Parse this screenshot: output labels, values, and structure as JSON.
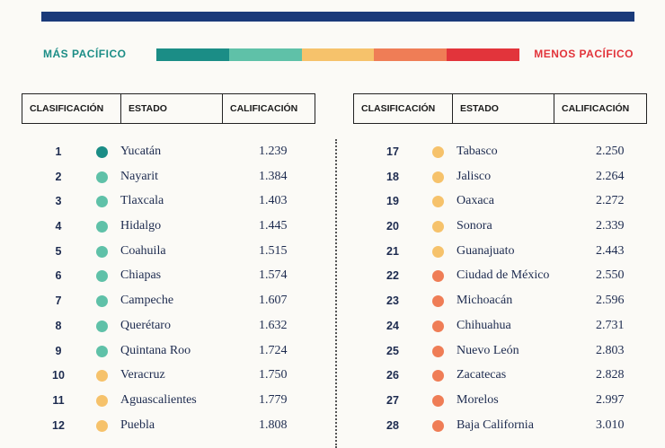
{
  "legend": {
    "left": "MÁS PACÍFICO",
    "right": "MENOS PACÍFICO",
    "scale_colors": [
      "#1b8d86",
      "#5fc1a8",
      "#f6c26b",
      "#ef7d56",
      "#e2343b"
    ]
  },
  "table_headers": {
    "rank": "CLASIFICACIÓN",
    "state": "ESTADO",
    "score": "CALIFICACIÓN"
  },
  "colors": {
    "teal_dark": "#1b8d86",
    "teal": "#5fc1a8",
    "yellow": "#f6c26b",
    "orange": "#ef7d56"
  },
  "left_rows": [
    {
      "rank": "1",
      "state": "Yucatán",
      "score": "1.239",
      "color": "#1b8d86"
    },
    {
      "rank": "2",
      "state": "Nayarit",
      "score": "1.384",
      "color": "#5fc1a8"
    },
    {
      "rank": "3",
      "state": "Tlaxcala",
      "score": "1.403",
      "color": "#5fc1a8"
    },
    {
      "rank": "4",
      "state": "Hidalgo",
      "score": "1.445",
      "color": "#5fc1a8"
    },
    {
      "rank": "5",
      "state": "Coahuila",
      "score": "1.515",
      "color": "#5fc1a8"
    },
    {
      "rank": "6",
      "state": "Chiapas",
      "score": "1.574",
      "color": "#5fc1a8"
    },
    {
      "rank": "7",
      "state": "Campeche",
      "score": "1.607",
      "color": "#5fc1a8"
    },
    {
      "rank": "8",
      "state": "Querétaro",
      "score": "1.632",
      "color": "#5fc1a8"
    },
    {
      "rank": "9",
      "state": "Quintana Roo",
      "score": "1.724",
      "color": "#5fc1a8"
    },
    {
      "rank": "10",
      "state": "Veracruz",
      "score": "1.750",
      "color": "#f6c26b"
    },
    {
      "rank": "11",
      "state": "Aguascalientes",
      "score": "1.779",
      "color": "#f6c26b"
    },
    {
      "rank": "12",
      "state": "Puebla",
      "score": "1.808",
      "color": "#f6c26b"
    }
  ],
  "right_rows": [
    {
      "rank": "17",
      "state": "Tabasco",
      "score": "2.250",
      "color": "#f6c26b"
    },
    {
      "rank": "18",
      "state": "Jalisco",
      "score": "2.264",
      "color": "#f6c26b"
    },
    {
      "rank": "19",
      "state": "Oaxaca",
      "score": "2.272",
      "color": "#f6c26b"
    },
    {
      "rank": "20",
      "state": "Sonora",
      "score": "2.339",
      "color": "#f6c26b"
    },
    {
      "rank": "21",
      "state": "Guanajuato",
      "score": "2.443",
      "color": "#f6c26b"
    },
    {
      "rank": "22",
      "state": "Ciudad de México",
      "score": "2.550",
      "color": "#ef7d56"
    },
    {
      "rank": "23",
      "state": "Michoacán",
      "score": "2.596",
      "color": "#ef7d56"
    },
    {
      "rank": "24",
      "state": "Chihuahua",
      "score": "2.731",
      "color": "#ef7d56"
    },
    {
      "rank": "25",
      "state": "Nuevo León",
      "score": "2.803",
      "color": "#ef7d56"
    },
    {
      "rank": "26",
      "state": "Zacatecas",
      "score": "2.828",
      "color": "#ef7d56"
    },
    {
      "rank": "27",
      "state": "Morelos",
      "score": "2.997",
      "color": "#ef7d56"
    },
    {
      "rank": "28",
      "state": "Baja California",
      "score": "3.010",
      "color": "#ef7d56"
    }
  ]
}
